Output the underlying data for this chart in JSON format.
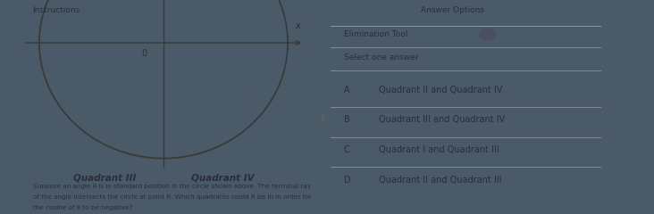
{
  "bg_color": "#4a5a68",
  "left_bg": "#c8ccc8",
  "right_bg": "#c0c8cc",
  "title_instructions": "Instructions",
  "title_answer": "Answer Options",
  "elimination_tool": "Elimination Tool",
  "select_one": "Select one answer",
  "options": [
    {
      "label": "A",
      "text": "Quadrant II and Quadrant IV"
    },
    {
      "label": "B",
      "text": "Quadrant III and Quadrant IV"
    },
    {
      "label": "C",
      "text": "Quadrant I and Quadrant III"
    },
    {
      "label": "D",
      "text": "Quadrant II and Quadrant III"
    }
  ],
  "quadrant_III": "Quadrant III",
  "quadrant_IV": "Quadrant IV",
  "question_text_1": "Suppose an angle θ is in standard position in the circle shown above. The terminal ray",
  "question_text_2": "of the angle intersects the circle at point R. Which quadrants could R be in in order for",
  "question_text_3": "the cosine of θ to be negative?",
  "origin_label": "0",
  "x_label": "x",
  "dot_color": "#4a5060",
  "text_color": "#2a2e38",
  "divider_color": "#9aa0a8",
  "line_color": "#3a3a3a"
}
